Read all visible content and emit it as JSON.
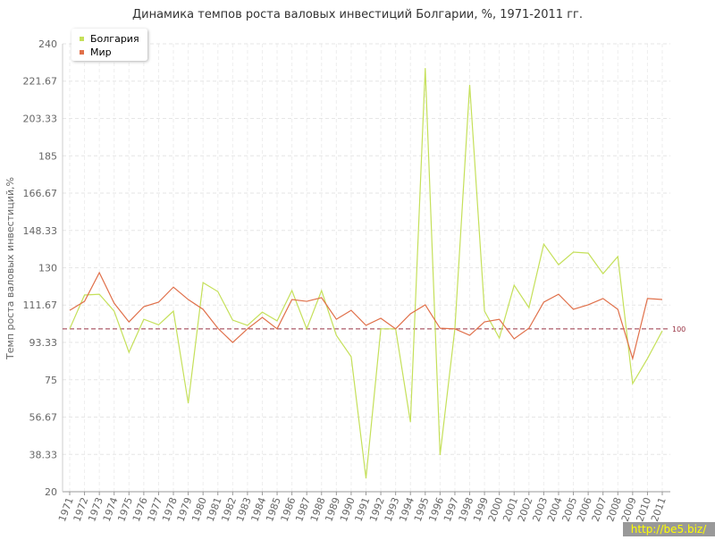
{
  "chart_data": {
    "type": "line",
    "title": "Динамика темпов роста валовых инвестиций Болгарии, %, 1971-2011 гг.",
    "y_label": "Темп роста валовых инвестиций,%",
    "watermark": "http://be5.biz/",
    "categories": [
      "1971",
      "1972",
      "1973",
      "1974",
      "1975",
      "1976",
      "1977",
      "1978",
      "1979",
      "1980",
      "1981",
      "1982",
      "1983",
      "1984",
      "1985",
      "1986",
      "1987",
      "1988",
      "1989",
      "1990",
      "1991",
      "1992",
      "1993",
      "1994",
      "1995",
      "1996",
      "1997",
      "1998",
      "1999",
      "2000",
      "2001",
      "2002",
      "2003",
      "2004",
      "2005",
      "2006",
      "2007",
      "2008",
      "2009",
      "2010",
      "2011"
    ],
    "series": [
      {
        "name": "Болгария",
        "color": "#c5e05a",
        "values": [
          100,
          116.6,
          117,
          108.7,
          88.5,
          104.7,
          102,
          108.7,
          63.5,
          122.7,
          118.3,
          104.3,
          101.7,
          108.2,
          103.9,
          118.8,
          100,
          118.8,
          96.8,
          86.3,
          26.6,
          100,
          100,
          54.2,
          228.1,
          38,
          100,
          219.8,
          108.7,
          95.5,
          121.4,
          110.4,
          141.6,
          131.5,
          137.7,
          137.2,
          127.1,
          135.5,
          73.1,
          85.4,
          99
        ]
      },
      {
        "name": "Мир",
        "color": "#e0704a",
        "values": [
          109.1,
          113.5,
          127.6,
          112.6,
          103.4,
          110.9,
          113.1,
          120.5,
          114.4,
          109.6,
          100.3,
          93.3,
          100,
          105.6,
          100,
          114.4,
          113.5,
          115.3,
          104.7,
          109.1,
          101.7,
          105.2,
          100,
          107.4,
          111.8,
          100.3,
          100,
          96.8,
          103.4,
          104.7,
          95.1,
          100.3,
          113.1,
          117,
          109.6,
          111.8,
          114.9,
          109.6,
          85.4,
          114.9,
          114.4
        ]
      }
    ],
    "reference_line": {
      "value": 100,
      "label": 100,
      "color": "#993344"
    },
    "ylim": [
      20,
      240
    ],
    "yticks": [
      20,
      38.33,
      56.67,
      75,
      93.33,
      111.67,
      130,
      148.33,
      166.67,
      185,
      203.33,
      221.67,
      240
    ],
    "grid": true,
    "legend": "top-left"
  }
}
